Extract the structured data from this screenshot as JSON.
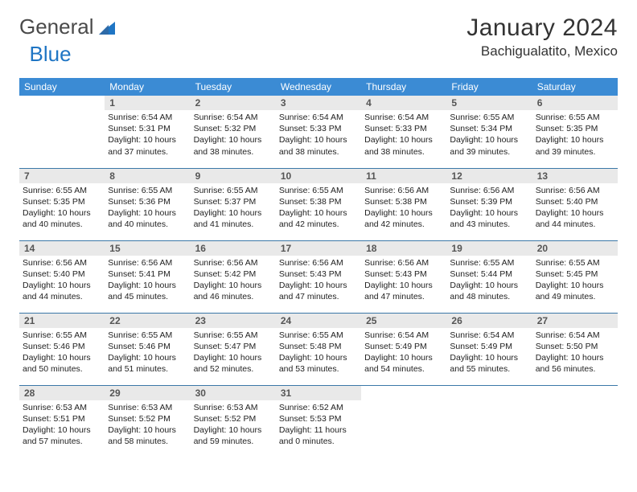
{
  "brand": {
    "part1": "General",
    "part2": "Blue"
  },
  "title": "January 2024",
  "location": "Bachigualatito, Mexico",
  "colors": {
    "header_bg": "#3b8bd4",
    "header_text": "#ffffff",
    "daynum_bg": "#e9e9e9",
    "row_border": "#3b78a8",
    "logo_blue": "#1f75c4"
  },
  "day_headers": [
    "Sunday",
    "Monday",
    "Tuesday",
    "Wednesday",
    "Thursday",
    "Friday",
    "Saturday"
  ],
  "weeks": [
    [
      null,
      {
        "n": "1",
        "sr": "Sunrise: 6:54 AM",
        "ss": "Sunset: 5:31 PM",
        "d1": "Daylight: 10 hours",
        "d2": "and 37 minutes."
      },
      {
        "n": "2",
        "sr": "Sunrise: 6:54 AM",
        "ss": "Sunset: 5:32 PM",
        "d1": "Daylight: 10 hours",
        "d2": "and 38 minutes."
      },
      {
        "n": "3",
        "sr": "Sunrise: 6:54 AM",
        "ss": "Sunset: 5:33 PM",
        "d1": "Daylight: 10 hours",
        "d2": "and 38 minutes."
      },
      {
        "n": "4",
        "sr": "Sunrise: 6:54 AM",
        "ss": "Sunset: 5:33 PM",
        "d1": "Daylight: 10 hours",
        "d2": "and 38 minutes."
      },
      {
        "n": "5",
        "sr": "Sunrise: 6:55 AM",
        "ss": "Sunset: 5:34 PM",
        "d1": "Daylight: 10 hours",
        "d2": "and 39 minutes."
      },
      {
        "n": "6",
        "sr": "Sunrise: 6:55 AM",
        "ss": "Sunset: 5:35 PM",
        "d1": "Daylight: 10 hours",
        "d2": "and 39 minutes."
      }
    ],
    [
      {
        "n": "7",
        "sr": "Sunrise: 6:55 AM",
        "ss": "Sunset: 5:35 PM",
        "d1": "Daylight: 10 hours",
        "d2": "and 40 minutes."
      },
      {
        "n": "8",
        "sr": "Sunrise: 6:55 AM",
        "ss": "Sunset: 5:36 PM",
        "d1": "Daylight: 10 hours",
        "d2": "and 40 minutes."
      },
      {
        "n": "9",
        "sr": "Sunrise: 6:55 AM",
        "ss": "Sunset: 5:37 PM",
        "d1": "Daylight: 10 hours",
        "d2": "and 41 minutes."
      },
      {
        "n": "10",
        "sr": "Sunrise: 6:55 AM",
        "ss": "Sunset: 5:38 PM",
        "d1": "Daylight: 10 hours",
        "d2": "and 42 minutes."
      },
      {
        "n": "11",
        "sr": "Sunrise: 6:56 AM",
        "ss": "Sunset: 5:38 PM",
        "d1": "Daylight: 10 hours",
        "d2": "and 42 minutes."
      },
      {
        "n": "12",
        "sr": "Sunrise: 6:56 AM",
        "ss": "Sunset: 5:39 PM",
        "d1": "Daylight: 10 hours",
        "d2": "and 43 minutes."
      },
      {
        "n": "13",
        "sr": "Sunrise: 6:56 AM",
        "ss": "Sunset: 5:40 PM",
        "d1": "Daylight: 10 hours",
        "d2": "and 44 minutes."
      }
    ],
    [
      {
        "n": "14",
        "sr": "Sunrise: 6:56 AM",
        "ss": "Sunset: 5:40 PM",
        "d1": "Daylight: 10 hours",
        "d2": "and 44 minutes."
      },
      {
        "n": "15",
        "sr": "Sunrise: 6:56 AM",
        "ss": "Sunset: 5:41 PM",
        "d1": "Daylight: 10 hours",
        "d2": "and 45 minutes."
      },
      {
        "n": "16",
        "sr": "Sunrise: 6:56 AM",
        "ss": "Sunset: 5:42 PM",
        "d1": "Daylight: 10 hours",
        "d2": "and 46 minutes."
      },
      {
        "n": "17",
        "sr": "Sunrise: 6:56 AM",
        "ss": "Sunset: 5:43 PM",
        "d1": "Daylight: 10 hours",
        "d2": "and 47 minutes."
      },
      {
        "n": "18",
        "sr": "Sunrise: 6:56 AM",
        "ss": "Sunset: 5:43 PM",
        "d1": "Daylight: 10 hours",
        "d2": "and 47 minutes."
      },
      {
        "n": "19",
        "sr": "Sunrise: 6:55 AM",
        "ss": "Sunset: 5:44 PM",
        "d1": "Daylight: 10 hours",
        "d2": "and 48 minutes."
      },
      {
        "n": "20",
        "sr": "Sunrise: 6:55 AM",
        "ss": "Sunset: 5:45 PM",
        "d1": "Daylight: 10 hours",
        "d2": "and 49 minutes."
      }
    ],
    [
      {
        "n": "21",
        "sr": "Sunrise: 6:55 AM",
        "ss": "Sunset: 5:46 PM",
        "d1": "Daylight: 10 hours",
        "d2": "and 50 minutes."
      },
      {
        "n": "22",
        "sr": "Sunrise: 6:55 AM",
        "ss": "Sunset: 5:46 PM",
        "d1": "Daylight: 10 hours",
        "d2": "and 51 minutes."
      },
      {
        "n": "23",
        "sr": "Sunrise: 6:55 AM",
        "ss": "Sunset: 5:47 PM",
        "d1": "Daylight: 10 hours",
        "d2": "and 52 minutes."
      },
      {
        "n": "24",
        "sr": "Sunrise: 6:55 AM",
        "ss": "Sunset: 5:48 PM",
        "d1": "Daylight: 10 hours",
        "d2": "and 53 minutes."
      },
      {
        "n": "25",
        "sr": "Sunrise: 6:54 AM",
        "ss": "Sunset: 5:49 PM",
        "d1": "Daylight: 10 hours",
        "d2": "and 54 minutes."
      },
      {
        "n": "26",
        "sr": "Sunrise: 6:54 AM",
        "ss": "Sunset: 5:49 PM",
        "d1": "Daylight: 10 hours",
        "d2": "and 55 minutes."
      },
      {
        "n": "27",
        "sr": "Sunrise: 6:54 AM",
        "ss": "Sunset: 5:50 PM",
        "d1": "Daylight: 10 hours",
        "d2": "and 56 minutes."
      }
    ],
    [
      {
        "n": "28",
        "sr": "Sunrise: 6:53 AM",
        "ss": "Sunset: 5:51 PM",
        "d1": "Daylight: 10 hours",
        "d2": "and 57 minutes."
      },
      {
        "n": "29",
        "sr": "Sunrise: 6:53 AM",
        "ss": "Sunset: 5:52 PM",
        "d1": "Daylight: 10 hours",
        "d2": "and 58 minutes."
      },
      {
        "n": "30",
        "sr": "Sunrise: 6:53 AM",
        "ss": "Sunset: 5:52 PM",
        "d1": "Daylight: 10 hours",
        "d2": "and 59 minutes."
      },
      {
        "n": "31",
        "sr": "Sunrise: 6:52 AM",
        "ss": "Sunset: 5:53 PM",
        "d1": "Daylight: 11 hours",
        "d2": "and 0 minutes."
      },
      null,
      null,
      null
    ]
  ]
}
